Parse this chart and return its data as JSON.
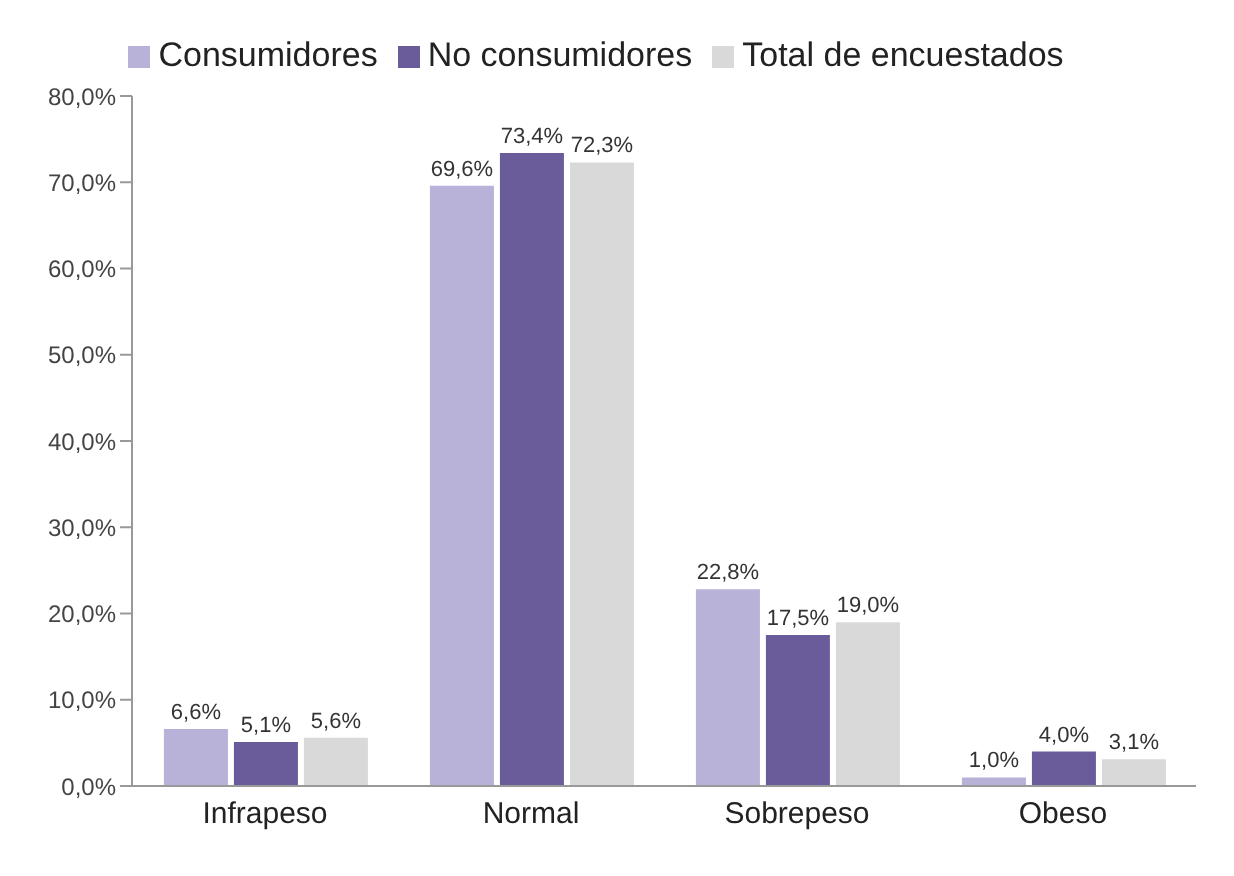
{
  "chart_data": {
    "type": "bar",
    "categories": [
      "Infrapeso",
      "Normal",
      "Sobrepeso",
      "Obeso"
    ],
    "series": [
      {
        "name": "Consumidores",
        "color": "#b8b1d8",
        "values": [
          6.6,
          69.6,
          22.8,
          1.0
        ],
        "value_labels": [
          "6,6%",
          "69,6%",
          "22,8%",
          "1,0%"
        ]
      },
      {
        "name": "No consumidores",
        "color": "#6a5c9a",
        "values": [
          5.1,
          73.4,
          17.5,
          4.0
        ],
        "value_labels": [
          "5,1%",
          "73,4%",
          "17,5%",
          "4,0%"
        ]
      },
      {
        "name": "Total de encuestados",
        "color": "#d9d9d9",
        "values": [
          5.6,
          72.3,
          19.0,
          3.1
        ],
        "value_labels": [
          "5,6%",
          "72,3%",
          "19,0%",
          "3,1%"
        ]
      }
    ],
    "ylim": [
      0,
      80
    ],
    "yticks": [
      {
        "value": 0,
        "label": "0,0%"
      },
      {
        "value": 10,
        "label": "10,0%"
      },
      {
        "value": 20,
        "label": "20,0%"
      },
      {
        "value": 30,
        "label": "30,0%"
      },
      {
        "value": 40,
        "label": "40,0%"
      },
      {
        "value": 50,
        "label": "50,0%"
      },
      {
        "value": 60,
        "label": "60,0%"
      },
      {
        "value": 70,
        "label": "70,0%"
      },
      {
        "value": 80,
        "label": "80,0%"
      }
    ],
    "grid": false,
    "legend": "top"
  }
}
